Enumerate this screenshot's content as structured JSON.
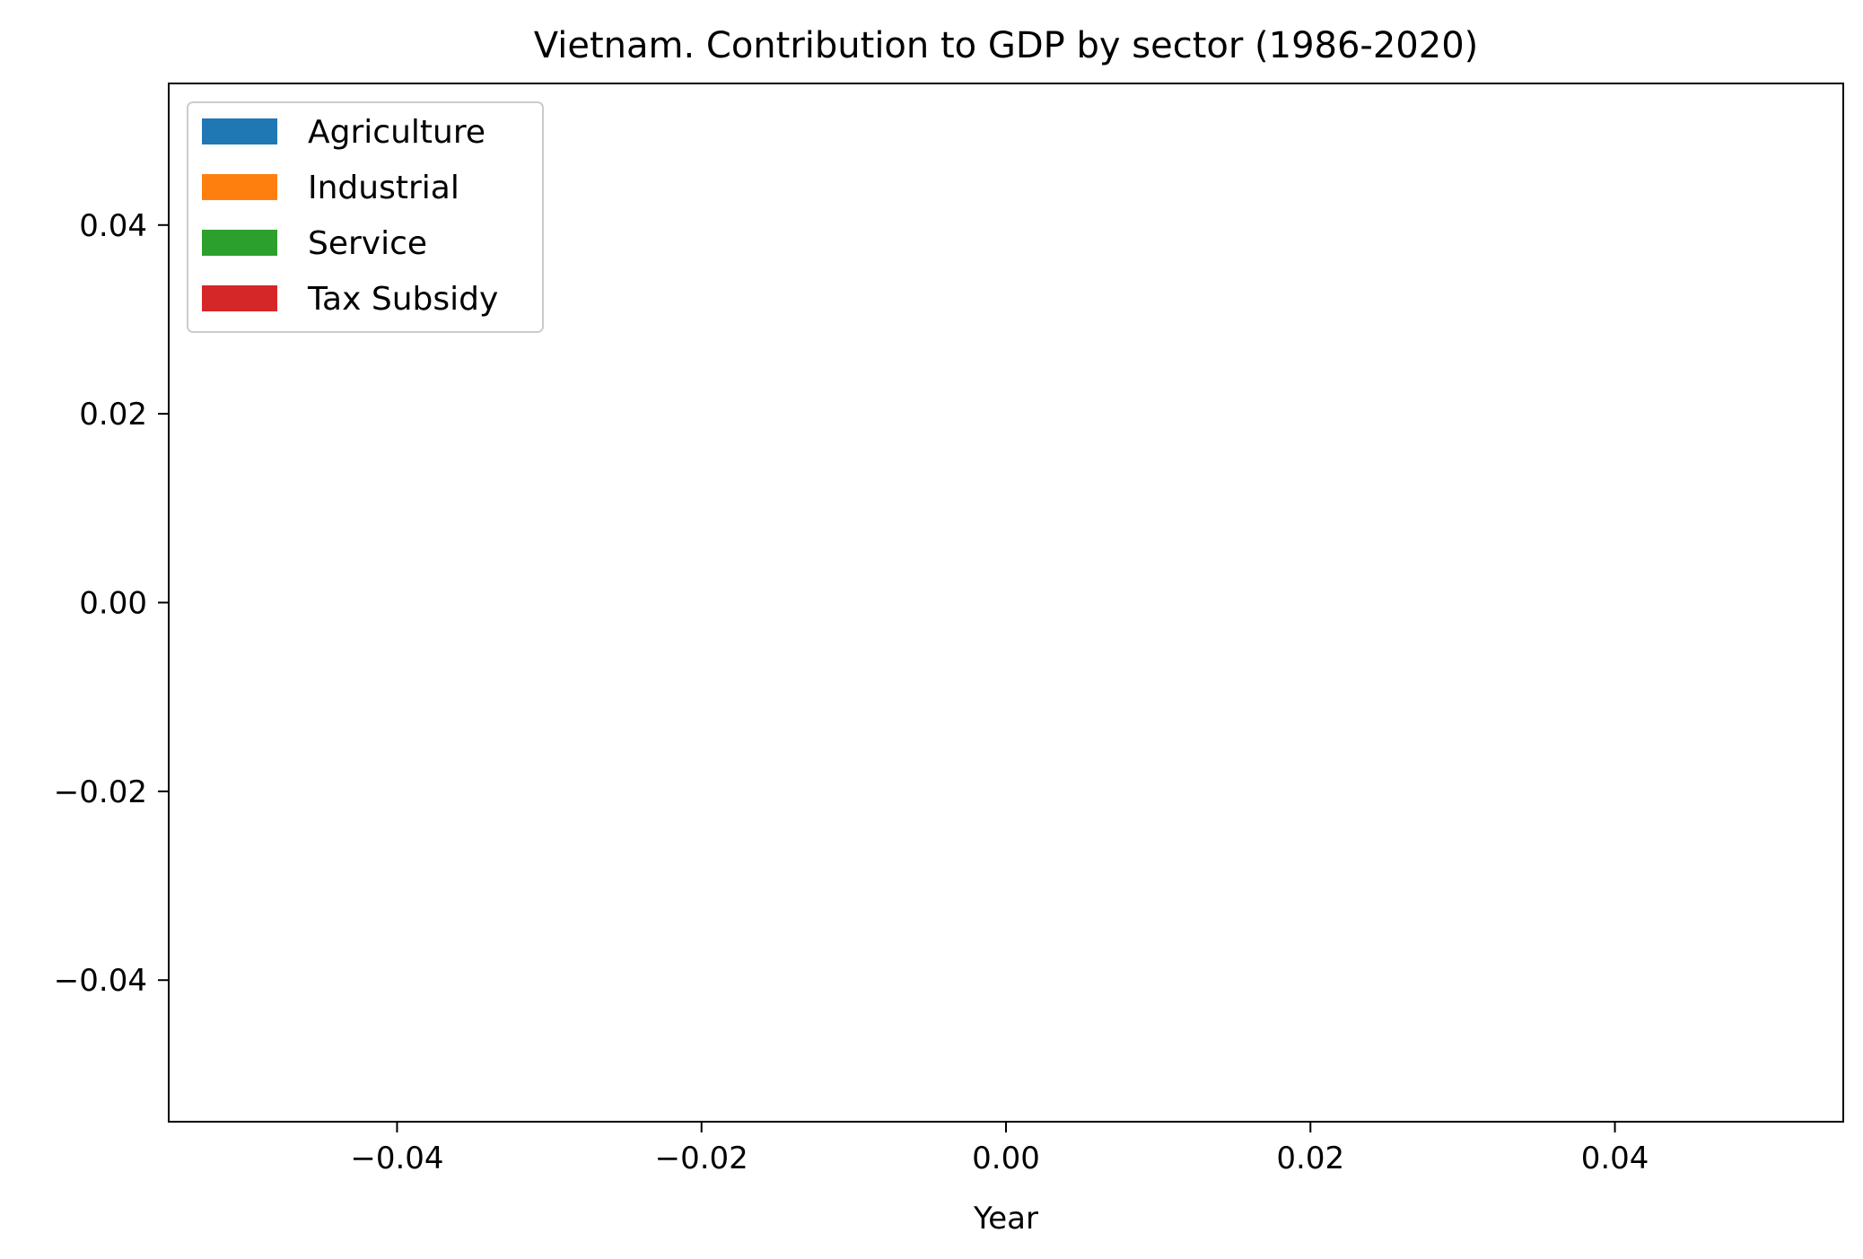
{
  "chart_data": {
    "type": "area",
    "title": "Vietnam. Contribution to GDP by sector (1986-2020)",
    "xlabel": "Year",
    "ylabel": "",
    "xlim": [
      -0.055,
      0.055
    ],
    "ylim": [
      -0.055,
      0.055
    ],
    "x_ticks": [
      -0.04,
      -0.02,
      0.0,
      0.02,
      0.04
    ],
    "x_tick_labels": [
      "−0.04",
      "−0.02",
      "0.00",
      "0.02",
      "0.04"
    ],
    "y_ticks": [
      0.04,
      0.02,
      0.0,
      -0.02,
      -0.04
    ],
    "y_tick_labels": [
      "0.04",
      "0.02",
      "0.00",
      "−0.02",
      "−0.04"
    ],
    "grid": false,
    "legend_position": "top-left",
    "x": [],
    "series": [
      {
        "name": "Agriculture",
        "color": "#1f77b4",
        "values": []
      },
      {
        "name": "Industrial",
        "color": "#ff7f0e",
        "values": []
      },
      {
        "name": "Service",
        "color": "#2ca02c",
        "values": []
      },
      {
        "name": "Tax Subsidy",
        "color": "#d62728",
        "values": []
      }
    ]
  }
}
